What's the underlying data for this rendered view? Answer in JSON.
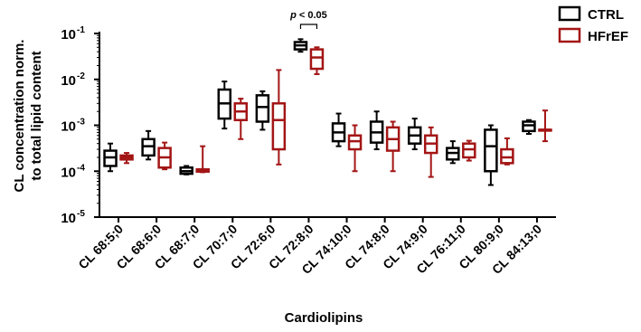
{
  "chart_data": {
    "type": "box",
    "title": "",
    "xlabel": "Cardiolipins",
    "ylabel_line1": "CL concentration norm.",
    "ylabel_line2": "to total lipid content",
    "yscale": "log",
    "ylim": [
      1e-05,
      0.1
    ],
    "yticks": [
      {
        "value": 0.1,
        "base": "10",
        "exp": "-1"
      },
      {
        "value": 0.01,
        "base": "10",
        "exp": "-2"
      },
      {
        "value": 0.001,
        "base": "10",
        "exp": "-3"
      },
      {
        "value": 0.0001,
        "base": "10",
        "exp": "-4"
      },
      {
        "value": 1e-05,
        "base": "10",
        "exp": "-5"
      }
    ],
    "grid": false,
    "legend_position": "top-right",
    "categories": [
      "CL 68:5;0",
      "CL 68:6;0",
      "CL 68:7;0",
      "CL 70:7;0",
      "CL 72:6;0",
      "CL 72:8;0",
      "CL 74:10;0",
      "CL 74:8;0",
      "CL 74:9;0",
      "CL 76:11;0",
      "CL 80:9;0",
      "CL 84:13;0"
    ],
    "series": [
      {
        "name": "CTRL",
        "color": "#000000",
        "boxes": [
          {
            "min": 0.0001,
            "q1": 0.00013,
            "median": 0.0002,
            "q3": 0.00028,
            "max": 0.0004
          },
          {
            "min": 0.00018,
            "q1": 0.00022,
            "median": 0.00035,
            "q3": 0.0005,
            "max": 0.00075
          },
          {
            "min": 8.5e-05,
            "q1": 8.8e-05,
            "median": 0.0001,
            "q3": 0.00012,
            "max": 0.00013
          },
          {
            "min": 0.00085,
            "q1": 0.0014,
            "median": 0.003,
            "q3": 0.006,
            "max": 0.009
          },
          {
            "min": 0.0008,
            "q1": 0.0012,
            "median": 0.0025,
            "q3": 0.0045,
            "max": 0.0055
          },
          {
            "min": 0.04,
            "q1": 0.045,
            "median": 0.055,
            "q3": 0.065,
            "max": 0.075
          },
          {
            "min": 0.00035,
            "q1": 0.00045,
            "median": 0.0007,
            "q3": 0.0011,
            "max": 0.0018
          },
          {
            "min": 0.0003,
            "q1": 0.00042,
            "median": 0.0007,
            "q3": 0.0012,
            "max": 0.002
          },
          {
            "min": 0.0003,
            "q1": 0.0004,
            "median": 0.0006,
            "q3": 0.0009,
            "max": 0.0014
          },
          {
            "min": 0.00015,
            "q1": 0.00018,
            "median": 0.00025,
            "q3": 0.00032,
            "max": 0.00045
          },
          {
            "min": 5e-05,
            "q1": 0.0001,
            "median": 0.00035,
            "q3": 0.0008,
            "max": 0.001
          },
          {
            "min": 0.00065,
            "q1": 0.00075,
            "median": 0.001,
            "q3": 0.0012,
            "max": 0.0013
          }
        ]
      },
      {
        "name": "HFrEF",
        "color": "#a31515",
        "boxes": [
          {
            "min": 0.00015,
            "q1": 0.00018,
            "median": 0.0002,
            "q3": 0.00022,
            "max": 0.00025
          },
          {
            "min": 0.00011,
            "q1": 0.00012,
            "median": 0.0002,
            "q3": 0.00032,
            "max": 0.00042
          },
          {
            "min": 9.5e-05,
            "q1": 9.8e-05,
            "median": 0.0001,
            "q3": 0.00011,
            "max": 0.00035
          },
          {
            "min": 0.0005,
            "q1": 0.0013,
            "median": 0.002,
            "q3": 0.003,
            "max": 0.0038
          },
          {
            "min": 0.00014,
            "q1": 0.0003,
            "median": 0.0013,
            "q3": 0.003,
            "max": 0.016
          },
          {
            "min": 0.013,
            "q1": 0.017,
            "median": 0.03,
            "q3": 0.045,
            "max": 0.05
          },
          {
            "min": 0.0001,
            "q1": 0.0003,
            "median": 0.00045,
            "q3": 0.0006,
            "max": 0.001
          },
          {
            "min": 0.0001,
            "q1": 0.00028,
            "median": 0.0005,
            "q3": 0.0009,
            "max": 0.0012
          },
          {
            "min": 7.5e-05,
            "q1": 0.00025,
            "median": 0.0004,
            "q3": 0.0006,
            "max": 0.0009
          },
          {
            "min": 0.00017,
            "q1": 0.0002,
            "median": 0.0003,
            "q3": 0.0004,
            "max": 0.00046
          },
          {
            "min": 0.00014,
            "q1": 0.00015,
            "median": 0.0002,
            "q3": 0.0003,
            "max": 0.00052
          },
          {
            "min": 0.00045,
            "q1": 0.0008,
            "median": 0.0008,
            "q3": 0.0008,
            "max": 0.0021
          }
        ]
      }
    ],
    "annotation": {
      "text_p": "p",
      "text_rest": " < 0.05",
      "from_category": 5,
      "series_a": 0,
      "series_b": 1
    }
  }
}
